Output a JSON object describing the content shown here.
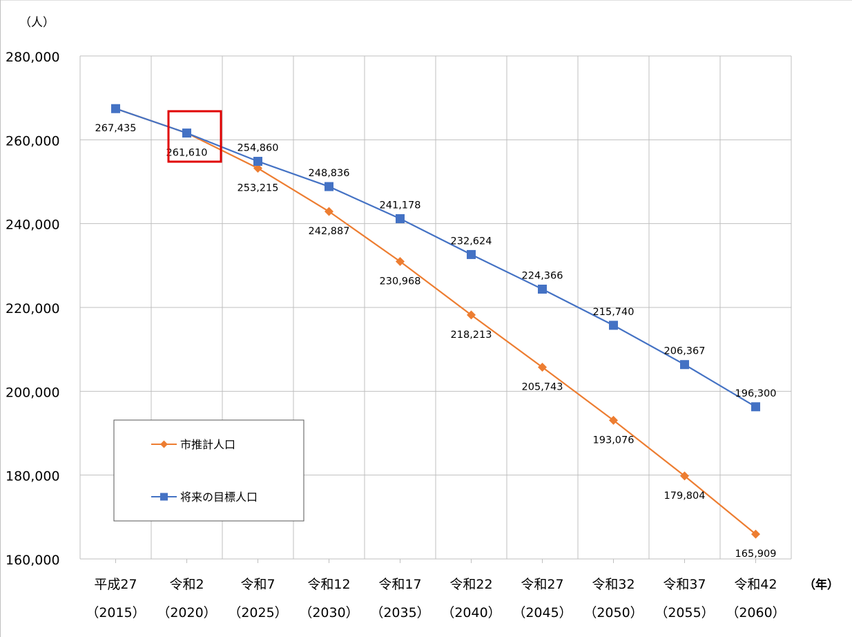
{
  "chart_data": {
    "type": "line",
    "y_unit_label": "（人）",
    "x_unit_label": "（年）",
    "categories": [
      {
        "era": "平成27",
        "year": "（2015）"
      },
      {
        "era": "令和2",
        "year": "（2020）"
      },
      {
        "era": "令和7",
        "year": "（2025）"
      },
      {
        "era": "令和12",
        "year": "（2030）"
      },
      {
        "era": "令和17",
        "year": "（2035）"
      },
      {
        "era": "令和22",
        "year": "（2040）"
      },
      {
        "era": "令和27",
        "year": "（2045）"
      },
      {
        "era": "令和32",
        "year": "（2050）"
      },
      {
        "era": "令和37",
        "year": "（2055）"
      },
      {
        "era": "令和42",
        "year": "（2060）"
      }
    ],
    "ylim": [
      160000,
      280000
    ],
    "y_ticks": [
      160000,
      180000,
      200000,
      220000,
      240000,
      260000,
      280000
    ],
    "y_tick_labels": [
      "160,000",
      "180,000",
      "200,000",
      "220,000",
      "240,000",
      "260,000",
      "280,000"
    ],
    "grid": true,
    "legend_position": "bottom-left",
    "highlight": {
      "category_index": 1,
      "color": "#e00000"
    },
    "series": [
      {
        "name": "市推計人口",
        "color": "#ed7d31",
        "marker": "diamond",
        "label_position": "below",
        "values": [
          267435,
          261610,
          253215,
          242887,
          230968,
          218213,
          205743,
          193076,
          179804,
          165909
        ],
        "labels": [
          "",
          "",
          "253,215",
          "242,887",
          "230,968",
          "218,213",
          "205,743",
          "193,076",
          "179,804",
          "165,909"
        ]
      },
      {
        "name": "将来の目標人口",
        "color": "#4472c4",
        "marker": "square",
        "label_position": "above",
        "values": [
          267435,
          261610,
          254860,
          248836,
          241178,
          232624,
          224366,
          215740,
          206367,
          196300
        ],
        "labels": [
          "267,435",
          "261,610",
          "254,860",
          "248,836",
          "241,178",
          "232,624",
          "224,366",
          "215,740",
          "206,367",
          "196,300"
        ]
      }
    ]
  }
}
